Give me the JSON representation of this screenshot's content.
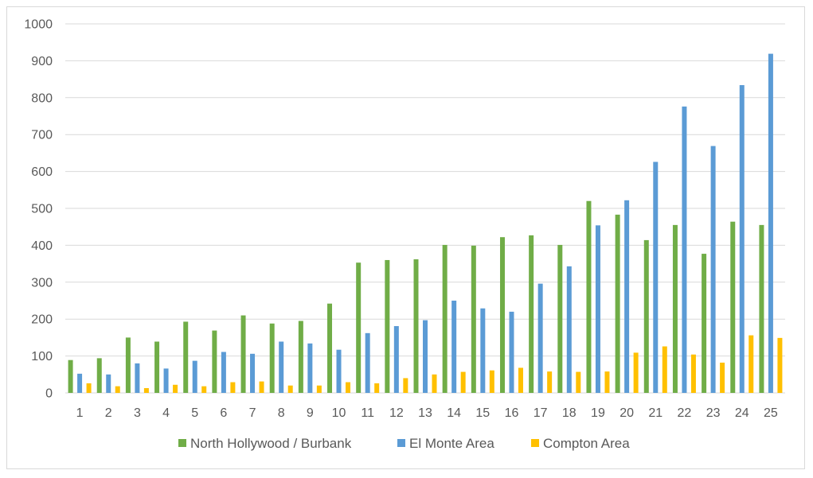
{
  "chart_data": {
    "type": "bar",
    "categories": [
      "1",
      "2",
      "3",
      "4",
      "5",
      "6",
      "7",
      "8",
      "9",
      "10",
      "11",
      "12",
      "13",
      "14",
      "15",
      "16",
      "17",
      "18",
      "19",
      "20",
      "21",
      "22",
      "23",
      "24",
      "25"
    ],
    "series": [
      {
        "name": "North Hollywood / Burbank",
        "color": "#70ad47",
        "values": [
          89,
          94,
          150,
          139,
          193,
          169,
          210,
          188,
          195,
          242,
          353,
          360,
          362,
          401,
          399,
          422,
          427,
          401,
          520,
          483,
          414,
          455,
          377,
          464,
          455
        ]
      },
      {
        "name": "El Monte Area",
        "color": "#5b9bd5",
        "values": [
          52,
          50,
          80,
          66,
          87,
          111,
          106,
          139,
          134,
          117,
          162,
          181,
          197,
          250,
          229,
          220,
          296,
          343,
          454,
          522,
          626,
          776,
          669,
          834,
          919
        ]
      },
      {
        "name": "Compton Area",
        "color": "#ffc000",
        "values": [
          26,
          18,
          13,
          22,
          18,
          29,
          31,
          20,
          20,
          29,
          26,
          40,
          50,
          57,
          61,
          68,
          58,
          57,
          58,
          109,
          126,
          104,
          82,
          156,
          149
        ]
      }
    ],
    "yticks": [
      "0",
      "100",
      "200",
      "300",
      "400",
      "500",
      "600",
      "700",
      "800",
      "900",
      "1000"
    ],
    "ylim": [
      0,
      1000
    ],
    "grid": true,
    "legend_position": "bottom"
  }
}
